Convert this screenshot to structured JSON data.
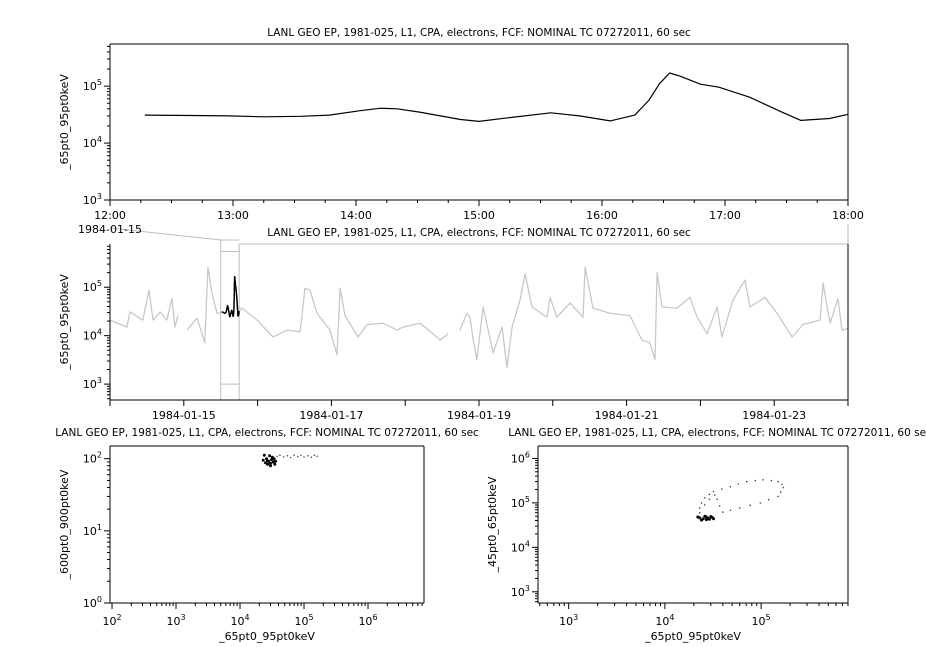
{
  "colors": {
    "primary": "#000000",
    "context": "#c8c8c8",
    "connector": "#bdbdbd"
  },
  "chart_data": [
    {
      "id": "timeseries-zoom",
      "type": "line",
      "title": "LANL GEO EP, 1981-025, L1, CPA, electrons, FCF: NOMINAL TC 07272011, 60 sec",
      "xlabel": "",
      "ylabel": "_65pt0_95pt0keV",
      "xscale": "time",
      "yscale": "log",
      "xlim": [
        "1984-01-15T12:00",
        "1984-01-15T18:00"
      ],
      "ylim": [
        1000,
        550000
      ],
      "x_ticks": [
        "1984-01-15T12:00",
        "1984-01-15T13:00",
        "1984-01-15T14:00",
        "1984-01-15T15:00",
        "1984-01-15T16:00",
        "1984-01-15T17:00",
        "1984-01-15T18:00"
      ],
      "x_tick_labels": [
        "12:00",
        "13:00",
        "14:00",
        "15:00",
        "16:00",
        "17:00",
        "18:00"
      ],
      "x_date_label": "1984-01-15",
      "y_ticks": [
        1000,
        10000,
        100000
      ],
      "y_tick_labels": [
        "10^3",
        "10^4",
        "10^5"
      ],
      "grid": false,
      "series": [
        {
          "color": "#000000",
          "points": [
            [
              "1984-01-15T12:17",
              31000
            ],
            [
              "1984-01-15T12:40",
              30500
            ],
            [
              "1984-01-15T12:58",
              30000
            ],
            [
              "1984-01-15T13:15",
              29000
            ],
            [
              "1984-01-15T13:33",
              29500
            ],
            [
              "1984-01-15T13:47",
              31000
            ],
            [
              "1984-01-15T14:02",
              37000
            ],
            [
              "1984-01-15T14:12",
              41000
            ],
            [
              "1984-01-15T14:20",
              40000
            ],
            [
              "1984-01-15T14:31",
              35000
            ],
            [
              "1984-01-15T14:51",
              26000
            ],
            [
              "1984-01-15T15:00",
              24000
            ],
            [
              "1984-01-15T15:15",
              28000
            ],
            [
              "1984-01-15T15:35",
              34000
            ],
            [
              "1984-01-15T15:49",
              30000
            ],
            [
              "1984-01-15T16:04",
              24500
            ],
            [
              "1984-01-15T16:16",
              31000
            ],
            [
              "1984-01-15T16:23",
              57000
            ],
            [
              "1984-01-15T16:28",
              110000
            ],
            [
              "1984-01-15T16:33",
              170000
            ],
            [
              "1984-01-15T16:38",
              150000
            ],
            [
              "1984-01-15T16:48",
              108000
            ],
            [
              "1984-01-15T16:57",
              96000
            ],
            [
              "1984-01-15T17:12",
              64000
            ],
            [
              "1984-01-15T17:27",
              36000
            ],
            [
              "1984-01-15T17:37",
              25000
            ],
            [
              "1984-01-15T17:51",
              27000
            ],
            [
              "1984-01-15T18:00",
              32000
            ]
          ]
        }
      ]
    },
    {
      "id": "timeseries-context",
      "type": "line",
      "title": "LANL GEO EP, 1981-025, L1, CPA, electrons, FCF: NOMINAL TC 07272011, 60 sec",
      "xlabel": "",
      "ylabel": "_65pt0_95pt0keV",
      "xscale": "time",
      "yscale": "log",
      "xlim": [
        "1984-01-14T00:00",
        "1984-01-24T00:00"
      ],
      "ylim": [
        470,
        780000
      ],
      "x_ticks": [
        "1984-01-15T00:00",
        "1984-01-17T00:00",
        "1984-01-19T00:00",
        "1984-01-21T00:00",
        "1984-01-23T00:00"
      ],
      "x_tick_labels": [
        "1984-01-15",
        "1984-01-17",
        "1984-01-19",
        "1984-01-21",
        "1984-01-23"
      ],
      "y_ticks": [
        1000,
        10000,
        100000
      ],
      "y_tick_labels": [
        "10^3",
        "10^4",
        "10^5"
      ],
      "highlight_range": [
        "1984-01-15T12:00",
        "1984-01-15T18:00"
      ],
      "grid": false,
      "series": [
        {
          "color": "#c8c8c8",
          "points": [
            [
              "1984-01-14T00:00",
              21000
            ],
            [
              "1984-01-14T05:30",
              15000
            ],
            [
              "1984-01-14T06:30",
              31000
            ],
            [
              "1984-01-14T10:40",
              21000
            ],
            [
              "1984-01-14T12:40",
              87000
            ],
            [
              "1984-01-14T14:00",
              21000
            ],
            [
              "1984-01-14T16:20",
              31000
            ],
            [
              "1984-01-14T18:30",
              21000
            ],
            [
              "1984-01-14T20:10",
              59000
            ],
            [
              "1984-01-14T21:05",
              15000
            ],
            [
              "1984-01-14T22:05",
              26000
            ],
            null,
            [
              "1984-01-15T01:00",
              13000
            ],
            [
              "1984-01-15T04:20",
              23000
            ],
            [
              "1984-01-15T06:50",
              7100
            ],
            [
              "1984-01-15T07:50",
              260000
            ],
            [
              "1984-01-15T09:10",
              75000
            ],
            [
              "1984-01-15T10:50",
              29000
            ],
            [
              "1984-01-15T12:00",
              30000
            ],
            null,
            [
              "1984-01-15T18:00",
              32000
            ],
            [
              "1984-01-15T18:55",
              37000
            ],
            [
              "1984-01-15T23:50",
              21000
            ],
            [
              "1984-01-16T05:00",
              9400
            ],
            [
              "1984-01-16T09:35",
              13000
            ],
            [
              "1984-01-16T13:50",
              12000
            ],
            [
              "1984-01-16T15:25",
              95000
            ],
            [
              "1984-01-16T17:00",
              87000
            ],
            [
              "1984-01-16T19:20",
              29000
            ],
            [
              "1984-01-16T23:30",
              13000
            ],
            [
              "1984-01-17T01:50",
              4000
            ],
            [
              "1984-01-17T02:50",
              95000
            ],
            [
              "1984-01-17T04:25",
              26000
            ],
            [
              "1984-01-17T08:40",
              9400
            ],
            [
              "1984-01-17T11:35",
              17000
            ],
            [
              "1984-01-17T16:50",
              18000
            ],
            [
              "1984-01-17T21:20",
              13000
            ],
            [
              "1984-01-17T23:20",
              15000
            ],
            [
              "1984-01-18T04:50",
              18000
            ],
            [
              "1984-01-18T09:00",
              11000
            ],
            [
              "1984-01-18T11:20",
              8100
            ],
            [
              "1984-01-18T13:55",
              11000
            ],
            null,
            [
              "1984-01-18T17:50",
              13000
            ],
            [
              "1984-01-18T20:05",
              29000
            ],
            [
              "1984-01-18T21:05",
              24000
            ],
            [
              "1984-01-18T22:00",
              9400
            ],
            [
              "1984-01-18T23:20",
              3200
            ],
            [
              "1984-01-19T01:20",
              39000
            ],
            [
              "1984-01-19T04:35",
              4400
            ],
            [
              "1984-01-19T07:30",
              15000
            ],
            [
              "1984-01-19T09:05",
              2200
            ],
            [
              "1984-01-19T10:45",
              15000
            ],
            [
              "1984-01-19T13:20",
              54000
            ],
            [
              "1984-01-19T15:00",
              190000
            ],
            [
              "1984-01-19T17:15",
              39000
            ],
            [
              "1984-01-19T22:05",
              24000
            ],
            [
              "1984-01-19T23:05",
              62000
            ],
            [
              "1984-01-20T01:20",
              24000
            ],
            [
              "1984-01-20T05:35",
              47000
            ],
            [
              "1984-01-20T09:50",
              24000
            ],
            [
              "1984-01-20T10:30",
              260000
            ],
            [
              "1984-01-20T13:05",
              37000
            ],
            [
              "1984-01-20T18:35",
              29000
            ],
            [
              "1984-01-21T01:05",
              26000
            ],
            [
              "1984-01-21T05:00",
              8100
            ],
            [
              "1984-01-21T07:35",
              7100
            ],
            [
              "1984-01-21T09:15",
              3200
            ],
            [
              "1984-01-21T09:55",
              200000
            ],
            [
              "1984-01-21T11:30",
              39000
            ],
            [
              "1984-01-21T16:25",
              37000
            ],
            [
              "1984-01-21T20:35",
              62000
            ],
            [
              "1984-01-21T22:55",
              24000
            ],
            [
              "1984-01-22T02:10",
              11000
            ],
            [
              "1984-01-22T05:25",
              39000
            ],
            [
              "1984-01-22T07:00",
              9400
            ],
            [
              "1984-01-22T10:35",
              54000
            ],
            [
              "1984-01-22T14:30",
              140000
            ],
            [
              "1984-01-22T16:05",
              39000
            ],
            [
              "1984-01-22T21:00",
              62000
            ],
            [
              "1984-01-23T00:55",
              29000
            ],
            [
              "1984-01-23T05:50",
              9400
            ],
            [
              "1984-01-23T09:20",
              17000
            ],
            [
              "1984-01-23T14:55",
              21000
            ],
            [
              "1984-01-23T15:55",
              120000
            ],
            [
              "1984-01-23T18:10",
              18000
            ],
            [
              "1984-01-23T20:45",
              59000
            ],
            [
              "1984-01-23T22:00",
              13000
            ],
            [
              "1984-01-24T00:00",
              14000
            ]
          ]
        }
      ]
    },
    {
      "id": "scatter-600-900",
      "type": "scatter",
      "title": "LANL GEO EP, 1981-025, L1, CPA, electrons, FCF: NOMINAL TC 07272011, 60 sec",
      "xlabel": "_65pt0_95pt0keV",
      "ylabel": "_600pt0_900pt0keV",
      "xscale": "log",
      "yscale": "log",
      "xlim": [
        93,
        7500000
      ],
      "ylim": [
        1,
        150
      ],
      "x_ticks": [
        100,
        1000,
        10000,
        100000,
        1000000
      ],
      "x_tick_labels": [
        "10^2",
        "10^3",
        "10^4",
        "10^5",
        "10^6"
      ],
      "y_ticks": [
        1,
        10,
        100
      ],
      "y_tick_labels": [
        "10^0",
        "10^1",
        "10^2"
      ],
      "grid": false,
      "series": [
        {
          "color": "#000000",
          "points": [
            [
              23000,
              95
            ],
            [
              25000,
              88
            ],
            [
              26000,
              100
            ],
            [
              27000,
              84
            ],
            [
              28000,
              92
            ],
            [
              29000,
              110
            ],
            [
              30000,
              86
            ],
            [
              31000,
              97
            ],
            [
              33000,
              90
            ],
            [
              35000,
              84
            ],
            [
              24000,
              112
            ],
            [
              32000,
              105
            ],
            [
              27000,
              93
            ],
            [
              30000,
              80
            ],
            [
              34000,
              100
            ],
            [
              36000,
              92
            ]
          ]
        },
        {
          "color": "#555555",
          "points": [
            [
              38000,
              108
            ],
            [
              42000,
              112
            ],
            [
              48000,
              106
            ],
            [
              55000,
              110
            ],
            [
              62000,
              104
            ],
            [
              70000,
              112
            ],
            [
              80000,
              107
            ],
            [
              90000,
              111
            ],
            [
              100000,
              106
            ],
            [
              115000,
              110
            ],
            [
              130000,
              105
            ],
            [
              145000,
              112
            ],
            [
              160000,
              108
            ]
          ]
        }
      ]
    },
    {
      "id": "scatter-45-65",
      "type": "scatter",
      "title": "LANL GEO EP, 1981-025, L1, CPA, electrons, FCF: NOMINAL TC 07272011, 60 sec",
      "xlabel": "_65pt0_95pt0keV",
      "ylabel": "_45pt0_65pt0keV",
      "xscale": "log",
      "yscale": "log",
      "xlim": [
        480,
        800000
      ],
      "ylim": [
        560,
        1900000
      ],
      "x_ticks": [
        1000,
        10000,
        100000
      ],
      "x_tick_labels": [
        "10^3",
        "10^4",
        "10^5"
      ],
      "y_ticks": [
        1000,
        10000,
        100000,
        1000000
      ],
      "y_tick_labels": [
        "10^3",
        "10^4",
        "10^5",
        "10^6"
      ],
      "grid": false,
      "series": [
        {
          "color": "#000000",
          "points": [
            [
              23000,
              46000
            ],
            [
              25000,
              44000
            ],
            [
              27000,
              48000
            ],
            [
              29000,
              43000
            ],
            [
              31000,
              47000
            ],
            [
              24000,
              41000
            ],
            [
              26000,
              50000
            ],
            [
              28000,
              45000
            ],
            [
              30000,
              49000
            ],
            [
              32000,
              44000
            ],
            [
              22000,
              48000
            ],
            [
              27000,
              42000
            ]
          ]
        },
        {
          "color": "#444444",
          "points": [
            [
              23000,
              46000
            ],
            [
              23000,
              60000
            ],
            [
              23000,
              77000
            ],
            [
              24000,
              100000
            ],
            [
              26000,
              130000
            ],
            [
              29000,
              155000
            ],
            [
              32000,
              180000
            ],
            [
              39000,
              205000
            ],
            [
              48000,
              230000
            ],
            [
              58000,
              265000
            ],
            [
              71000,
              300000
            ],
            [
              87000,
              318000
            ],
            [
              105000,
              330000
            ],
            [
              128000,
              318000
            ],
            [
              150000,
              300000
            ],
            [
              165000,
              260000
            ],
            [
              170000,
              220000
            ],
            [
              160000,
              175000
            ],
            [
              150000,
              140000
            ],
            [
              120000,
              118000
            ],
            [
              98000,
              100000
            ],
            [
              77000,
              88000
            ],
            [
              60000,
              77000
            ],
            [
              48000,
              68000
            ],
            [
              40000,
              62000
            ],
            [
              37000,
              85000
            ],
            [
              35000,
              120000
            ],
            [
              33000,
              150000
            ],
            [
              29000,
              120000
            ],
            [
              26000,
              90000
            ],
            [
              29000,
              48000
            ],
            [
              25000,
              46000
            ]
          ]
        }
      ]
    }
  ]
}
